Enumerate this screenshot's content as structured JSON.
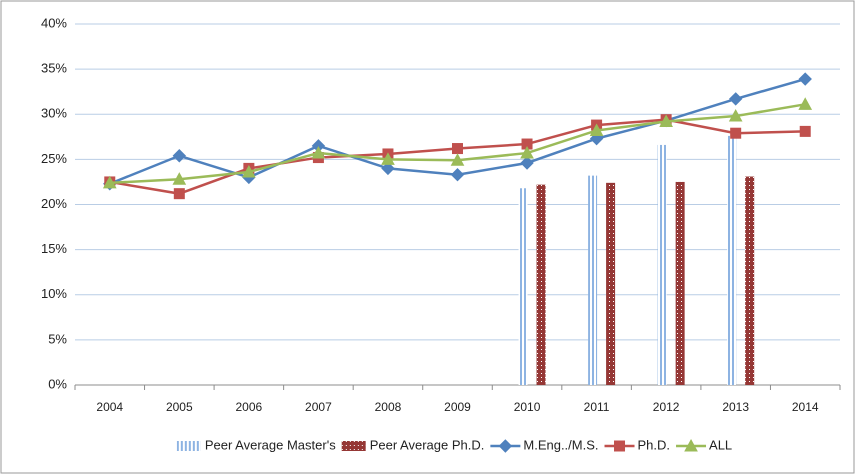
{
  "chart_data": {
    "type": "combo",
    "categories": [
      "2004",
      "2005",
      "2006",
      "2007",
      "2008",
      "2009",
      "2010",
      "2011",
      "2012",
      "2013",
      "2014"
    ],
    "series": [
      {
        "name": "Peer Average Master's",
        "type": "bar",
        "color": "#8db3e2",
        "values": [
          null,
          null,
          null,
          null,
          null,
          null,
          21.8,
          23.2,
          26.6,
          27.6,
          null
        ]
      },
      {
        "name": "Peer Average Ph.D.",
        "type": "bar",
        "color": "#953735",
        "values": [
          null,
          null,
          null,
          null,
          null,
          null,
          22.2,
          22.4,
          22.5,
          23.1,
          null
        ]
      },
      {
        "name": "M.Eng../M.S.",
        "type": "line",
        "marker": "diamond",
        "color": "#4f81bd",
        "values": [
          22.3,
          25.4,
          23.0,
          26.5,
          24.0,
          23.3,
          24.6,
          27.3,
          29.3,
          31.7,
          33.9
        ]
      },
      {
        "name": "Ph.D.",
        "type": "line",
        "marker": "square",
        "color": "#c0504d",
        "values": [
          22.5,
          21.2,
          24.0,
          25.2,
          25.6,
          26.2,
          26.7,
          28.8,
          29.4,
          27.9,
          28.1
        ]
      },
      {
        "name": "ALL",
        "type": "line",
        "marker": "triangle",
        "color": "#9bbb59",
        "values": [
          22.4,
          22.8,
          23.6,
          25.7,
          25.0,
          24.9,
          25.7,
          28.2,
          29.2,
          29.8,
          31.1
        ]
      }
    ],
    "ylim": [
      0,
      40
    ],
    "yticks": [
      {
        "value": 0,
        "label": "0%"
      },
      {
        "value": 5,
        "label": "5%"
      },
      {
        "value": 10,
        "label": "10%"
      },
      {
        "value": 15,
        "label": "15%"
      },
      {
        "value": 20,
        "label": "20%"
      },
      {
        "value": 25,
        "label": "25%"
      },
      {
        "value": 30,
        "label": "30%"
      },
      {
        "value": 35,
        "label": "35%"
      },
      {
        "value": 40,
        "label": "40%"
      }
    ],
    "grid": true,
    "legend": "bottom"
  }
}
